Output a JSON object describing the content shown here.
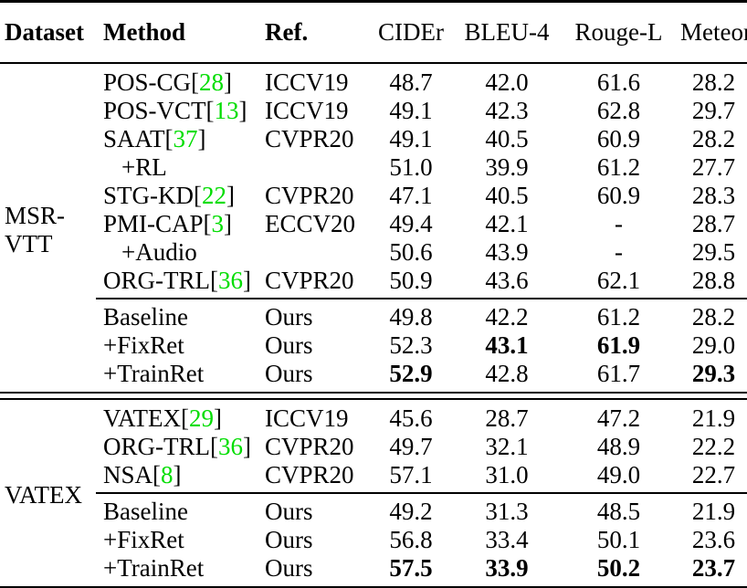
{
  "page": {
    "background": "#ffffff",
    "text_color": "#000000",
    "citation_color": "#00dd00"
  },
  "table": {
    "columns": [
      {
        "label": "Dataset",
        "bold": true,
        "align": "left"
      },
      {
        "label": "Method",
        "bold": true,
        "align": "left"
      },
      {
        "label": "Ref.",
        "bold": true,
        "align": "left"
      },
      {
        "label": "CIDEr",
        "bold": false,
        "align": "center"
      },
      {
        "label": "BLEU-4",
        "bold": false,
        "align": "center"
      },
      {
        "label": "Rouge-L",
        "bold": false,
        "align": "center"
      },
      {
        "label": "Meteor",
        "bold": false,
        "align": "center"
      }
    ],
    "sections": [
      {
        "dataset_lines": [
          "MSR-",
          "VTT"
        ],
        "groups": [
          {
            "rows": [
              {
                "method": "POS-CG",
                "cite": "28",
                "ref": "ICCV19",
                "indent": false,
                "values": [
                  "48.7",
                  "42.0",
                  "61.6",
                  "28.2"
                ],
                "bold": [
                  false,
                  false,
                  false,
                  false
                ]
              },
              {
                "method": "POS-VCT",
                "cite": "13",
                "ref": "ICCV19",
                "indent": false,
                "values": [
                  "49.1",
                  "42.3",
                  "62.8",
                  "29.7"
                ],
                "bold": [
                  false,
                  false,
                  false,
                  false
                ]
              },
              {
                "method": "SAAT",
                "cite": "37",
                "ref": "CVPR20",
                "indent": false,
                "values": [
                  "49.1",
                  "40.5",
                  "60.9",
                  "28.2"
                ],
                "bold": [
                  false,
                  false,
                  false,
                  false
                ]
              },
              {
                "method": "+RL",
                "cite": "",
                "ref": "",
                "indent": true,
                "values": [
                  "51.0",
                  "39.9",
                  "61.2",
                  "27.7"
                ],
                "bold": [
                  false,
                  false,
                  false,
                  false
                ]
              },
              {
                "method": "STG-KD",
                "cite": "22",
                "ref": "CVPR20",
                "indent": false,
                "values": [
                  "47.1",
                  "40.5",
                  "60.9",
                  "28.3"
                ],
                "bold": [
                  false,
                  false,
                  false,
                  false
                ]
              },
              {
                "method": "PMI-CAP",
                "cite": "3",
                "ref": "ECCV20",
                "indent": false,
                "values": [
                  "49.4",
                  "42.1",
                  "-",
                  "28.7"
                ],
                "bold": [
                  false,
                  false,
                  false,
                  false
                ]
              },
              {
                "method": "+Audio",
                "cite": "",
                "ref": "",
                "indent": true,
                "values": [
                  "50.6",
                  "43.9",
                  "-",
                  "29.5"
                ],
                "bold": [
                  false,
                  false,
                  false,
                  false
                ]
              },
              {
                "method": "ORG-TRL",
                "cite": "36",
                "ref": "CVPR20",
                "indent": false,
                "values": [
                  "50.9",
                  "43.6",
                  "62.1",
                  "28.8"
                ],
                "bold": [
                  false,
                  false,
                  false,
                  false
                ]
              }
            ]
          },
          {
            "rows": [
              {
                "method": "Baseline",
                "cite": "",
                "ref": "Ours",
                "indent": false,
                "values": [
                  "49.8",
                  "42.2",
                  "61.2",
                  "28.2"
                ],
                "bold": [
                  false,
                  false,
                  false,
                  false
                ]
              },
              {
                "method": "+FixRet",
                "cite": "",
                "ref": "Ours",
                "indent": false,
                "values": [
                  "52.3",
                  "43.1",
                  "61.9",
                  "29.0"
                ],
                "bold": [
                  false,
                  true,
                  true,
                  false
                ]
              },
              {
                "method": "+TrainRet",
                "cite": "",
                "ref": "Ours",
                "indent": false,
                "values": [
                  "52.9",
                  "42.8",
                  "61.7",
                  "29.3"
                ],
                "bold": [
                  true,
                  false,
                  false,
                  true
                ]
              }
            ]
          }
        ]
      },
      {
        "dataset_lines": [
          "VATEX"
        ],
        "groups": [
          {
            "rows": [
              {
                "method": "VATEX",
                "cite": "29",
                "ref": "ICCV19",
                "indent": false,
                "values": [
                  "45.6",
                  "28.7",
                  "47.2",
                  "21.9"
                ],
                "bold": [
                  false,
                  false,
                  false,
                  false
                ]
              },
              {
                "method": "ORG-TRL",
                "cite": "36",
                "ref": "CVPR20",
                "indent": false,
                "values": [
                  "49.7",
                  "32.1",
                  "48.9",
                  "22.2"
                ],
                "bold": [
                  false,
                  false,
                  false,
                  false
                ]
              },
              {
                "method": "NSA",
                "cite": "8",
                "ref": "CVPR20",
                "indent": false,
                "values": [
                  "57.1",
                  "31.0",
                  "49.0",
                  "22.7"
                ],
                "bold": [
                  false,
                  false,
                  false,
                  false
                ]
              }
            ]
          },
          {
            "rows": [
              {
                "method": "Baseline",
                "cite": "",
                "ref": "Ours",
                "indent": false,
                "values": [
                  "49.2",
                  "31.3",
                  "48.5",
                  "21.9"
                ],
                "bold": [
                  false,
                  false,
                  false,
                  false
                ]
              },
              {
                "method": "+FixRet",
                "cite": "",
                "ref": "Ours",
                "indent": false,
                "values": [
                  "56.8",
                  "33.4",
                  "50.1",
                  "23.6"
                ],
                "bold": [
                  false,
                  false,
                  false,
                  false
                ]
              },
              {
                "method": "+TrainRet",
                "cite": "",
                "ref": "Ours",
                "indent": false,
                "values": [
                  "57.5",
                  "33.9",
                  "50.2",
                  "23.7"
                ],
                "bold": [
                  true,
                  true,
                  true,
                  true
                ]
              }
            ]
          }
        ]
      }
    ]
  }
}
